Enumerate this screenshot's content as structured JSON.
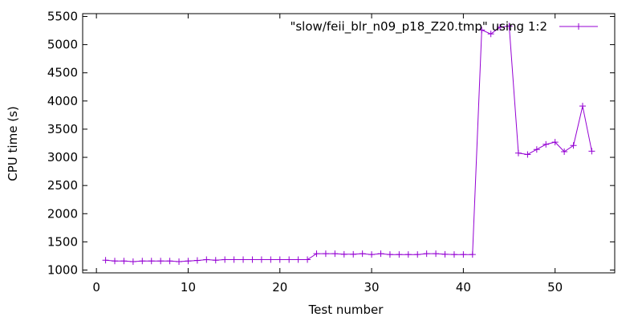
{
  "chart_data": {
    "type": "line",
    "xlabel": "Test number",
    "ylabel": "CPU time (s)",
    "xlim": [
      -1.5,
      56.5
    ],
    "ylim": [
      950,
      5550
    ],
    "x_ticks": [
      0,
      10,
      20,
      30,
      40,
      50
    ],
    "y_ticks": [
      1000,
      1500,
      2000,
      2500,
      3000,
      3500,
      4000,
      4500,
      5000,
      5500
    ],
    "grid": false,
    "legend_position": "top-right",
    "series": [
      {
        "name": "\"slow/feii_blr_n09_p18_Z20.tmp\" using 1:2",
        "color": "#9400d3",
        "marker": "plus",
        "x": [
          1,
          2,
          3,
          4,
          5,
          6,
          7,
          8,
          9,
          10,
          11,
          12,
          13,
          14,
          15,
          16,
          17,
          18,
          19,
          20,
          21,
          22,
          23,
          24,
          25,
          26,
          27,
          28,
          29,
          30,
          31,
          32,
          33,
          34,
          35,
          36,
          37,
          38,
          39,
          40,
          41,
          42,
          43,
          44,
          45,
          46,
          47,
          48,
          49,
          50,
          51,
          52,
          53,
          54
        ],
        "y": [
          1175,
          1160,
          1160,
          1150,
          1160,
          1160,
          1160,
          1160,
          1150,
          1160,
          1170,
          1185,
          1175,
          1185,
          1185,
          1185,
          1185,
          1185,
          1185,
          1185,
          1185,
          1185,
          1185,
          1290,
          1290,
          1290,
          1280,
          1280,
          1290,
          1275,
          1290,
          1275,
          1275,
          1275,
          1275,
          1290,
          1290,
          1280,
          1275,
          1275,
          1275,
          5260,
          5190,
          5310,
          5330,
          3075,
          3050,
          3140,
          3230,
          3270,
          3100,
          3210,
          3910,
          3110
        ]
      }
    ]
  }
}
